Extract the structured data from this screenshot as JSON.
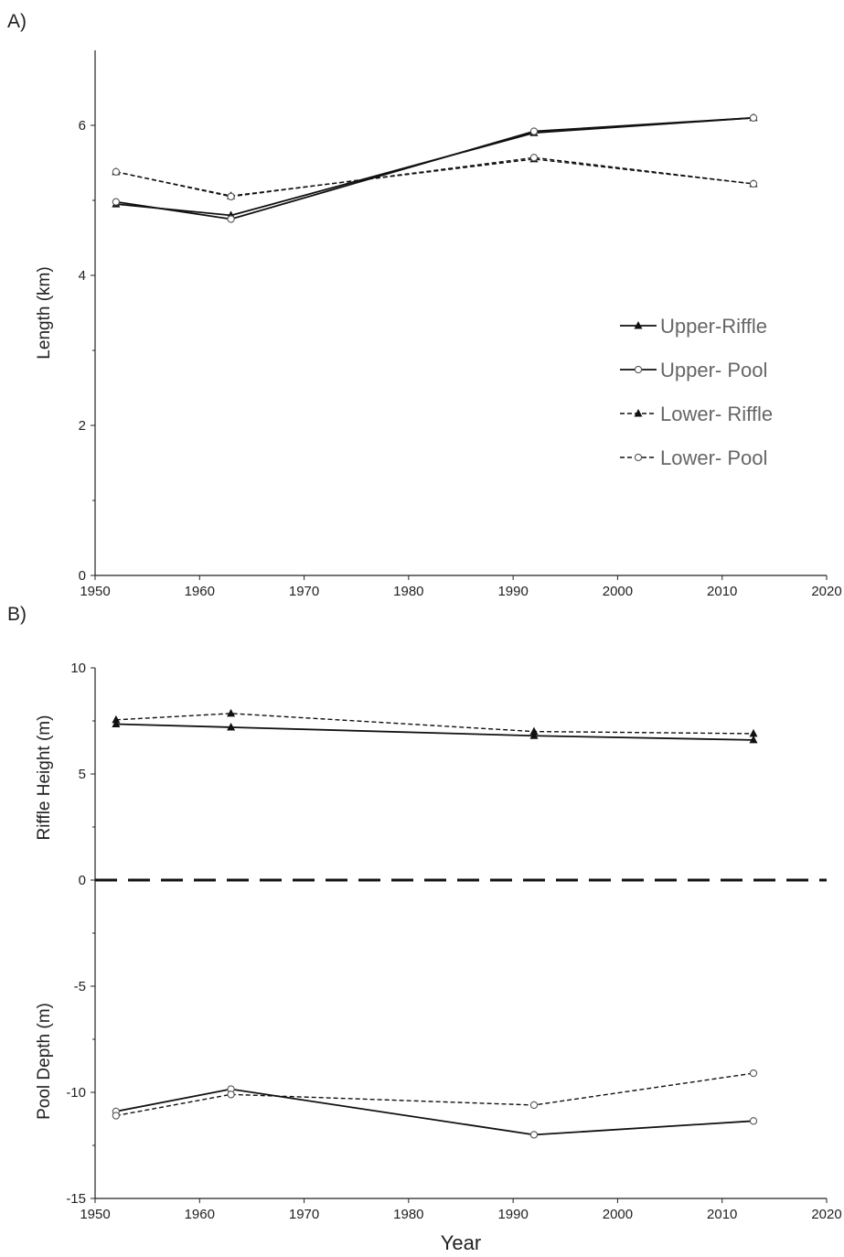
{
  "chart_data": [
    {
      "panel_label": "A)",
      "type": "line",
      "xlabel": "",
      "ylabel": "Length (km)",
      "xlim": [
        1950,
        2020
      ],
      "ylim": [
        0,
        7
      ],
      "xticks": [
        1950,
        1960,
        1970,
        1980,
        1990,
        2000,
        2010,
        2020
      ],
      "yticks": [
        0,
        2,
        4,
        6
      ],
      "grid": false,
      "legend_position": "right",
      "series": [
        {
          "name": "Upper-Riffle",
          "line": "solid",
          "marker": "triangle",
          "x": [
            1952,
            1963,
            1992,
            2013
          ],
          "y": [
            4.95,
            4.8,
            5.9,
            6.1
          ]
        },
        {
          "name": "Upper- Pool",
          "line": "solid",
          "marker": "circle",
          "x": [
            1952,
            1963,
            1992,
            2013
          ],
          "y": [
            4.98,
            4.75,
            5.92,
            6.1
          ]
        },
        {
          "name": "Lower- Riffle",
          "line": "dashed",
          "marker": "triangle",
          "x": [
            1952,
            1963,
            1992,
            2013
          ],
          "y": [
            5.38,
            5.06,
            5.55,
            5.22
          ]
        },
        {
          "name": "Lower- Pool",
          "line": "dashed",
          "marker": "circle",
          "x": [
            1952,
            1963,
            1992,
            2013
          ],
          "y": [
            5.38,
            5.05,
            5.57,
            5.22
          ]
        }
      ]
    },
    {
      "panel_label": "B)",
      "type": "line",
      "xlabel": "Year",
      "ylabel_top": "Riffle Height (m)",
      "ylabel_bottom": "Pool Depth (m)",
      "xlim": [
        1950,
        2020
      ],
      "ylim": [
        -15,
        10
      ],
      "xticks": [
        1950,
        1960,
        1970,
        1980,
        1990,
        2000,
        2010,
        2020
      ],
      "yticks": [
        -15,
        -10,
        -5,
        0,
        5,
        10
      ],
      "grid": false,
      "zero_line": "dashed",
      "series": [
        {
          "line": "solid",
          "marker": "triangle",
          "x": [
            1952,
            1963,
            1992,
            2013
          ],
          "y": [
            7.35,
            7.2,
            6.8,
            6.6
          ]
        },
        {
          "line": "dashed",
          "marker": "triangle",
          "x": [
            1952,
            1963,
            1992,
            2013
          ],
          "y": [
            7.55,
            7.85,
            7.0,
            6.9
          ]
        },
        {
          "line": "solid",
          "marker": "circle",
          "x": [
            1952,
            1963,
            1992,
            2013
          ],
          "y": [
            -10.9,
            -9.85,
            -12.0,
            -11.35
          ]
        },
        {
          "line": "dashed",
          "marker": "circle",
          "x": [
            1952,
            1963,
            1992,
            2013
          ],
          "y": [
            -11.1,
            -10.1,
            -10.6,
            -9.1
          ]
        }
      ]
    }
  ]
}
